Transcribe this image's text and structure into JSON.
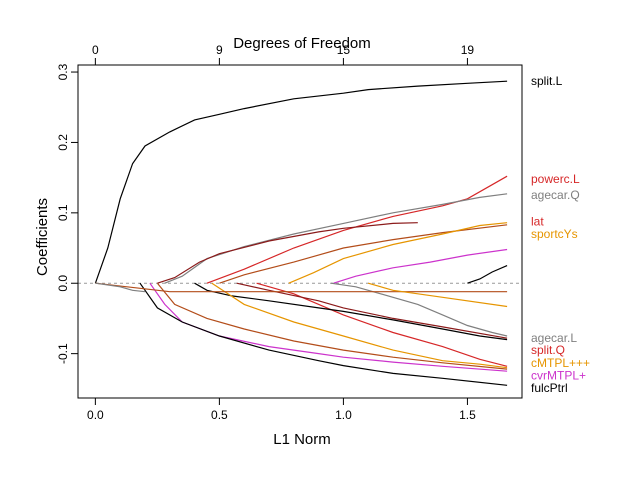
{
  "chart_data": {
    "type": "line",
    "title": "",
    "xlabel": "L1 Norm",
    "ylabel": "Coefficients",
    "top_axis_label": "Degrees of Freedom",
    "xlim": [
      -0.07,
      1.72
    ],
    "ylim": [
      -0.163,
      0.31
    ],
    "x_ticks": [
      0.0,
      0.5,
      1.0,
      1.5
    ],
    "x_tick_labels": [
      "0.0",
      "0.5",
      "1.0",
      "1.5"
    ],
    "y_ticks": [
      -0.1,
      0.0,
      0.1,
      0.2,
      0.3
    ],
    "y_tick_labels": [
      "-0.1",
      "0.0",
      "0.1",
      "0.2",
      "0.3"
    ],
    "top_ticks": [
      0.0,
      0.5,
      1.0,
      1.5
    ],
    "top_tick_labels": [
      "0",
      "9",
      "15",
      "19"
    ],
    "zero_line": true,
    "series": [
      {
        "name": "split.L",
        "color": "#000000",
        "points": [
          [
            0,
            0
          ],
          [
            0.05,
            0.05
          ],
          [
            0.1,
            0.12
          ],
          [
            0.15,
            0.17
          ],
          [
            0.2,
            0.195
          ],
          [
            0.3,
            0.215
          ],
          [
            0.4,
            0.232
          ],
          [
            0.5,
            0.24
          ],
          [
            0.6,
            0.248
          ],
          [
            0.8,
            0.262
          ],
          [
            1.0,
            0.27
          ],
          [
            1.1,
            0.275
          ],
          [
            1.3,
            0.28
          ],
          [
            1.5,
            0.284
          ],
          [
            1.66,
            0.287
          ]
        ]
      },
      {
        "name": "",
        "color": "#000000",
        "points": [
          [
            1.5,
            0.0
          ],
          [
            1.55,
            0.006
          ],
          [
            1.6,
            0.016
          ],
          [
            1.66,
            0.025
          ]
        ]
      },
      {
        "name": "powerc.L",
        "color": "#d62728",
        "points": [
          [
            0.45,
            0
          ],
          [
            0.6,
            0.02
          ],
          [
            0.8,
            0.05
          ],
          [
            1.0,
            0.075
          ],
          [
            1.2,
            0.095
          ],
          [
            1.4,
            0.11
          ],
          [
            1.5,
            0.12
          ],
          [
            1.6,
            0.14
          ],
          [
            1.66,
            0.152
          ]
        ]
      },
      {
        "name": "agecar.Q",
        "color": "#7f7f7f",
        "points": [
          [
            0.28,
            0
          ],
          [
            0.35,
            0.01
          ],
          [
            0.45,
            0.035
          ],
          [
            0.6,
            0.052
          ],
          [
            0.8,
            0.07
          ],
          [
            1.0,
            0.085
          ],
          [
            1.2,
            0.1
          ],
          [
            1.4,
            0.112
          ],
          [
            1.55,
            0.122
          ],
          [
            1.66,
            0.127
          ]
        ]
      },
      {
        "name": "",
        "color": "#8b1a1a",
        "points": [
          [
            0.25,
            0
          ],
          [
            0.32,
            0.008
          ],
          [
            0.42,
            0.03
          ],
          [
            0.5,
            0.042
          ],
          [
            0.7,
            0.06
          ],
          [
            0.9,
            0.073
          ],
          [
            1.0,
            0.078
          ],
          [
            1.2,
            0.085
          ],
          [
            1.3,
            0.086
          ]
        ]
      },
      {
        "name": "lat",
        "color": "#b34d1a",
        "points": [
          [
            0.5,
            0
          ],
          [
            0.6,
            0.012
          ],
          [
            0.8,
            0.03
          ],
          [
            1.0,
            0.05
          ],
          [
            1.2,
            0.062
          ],
          [
            1.4,
            0.072
          ],
          [
            1.66,
            0.083
          ]
        ]
      },
      {
        "name": "sportcYs",
        "color": "#e69500",
        "points": [
          [
            0.78,
            0
          ],
          [
            0.88,
            0.015
          ],
          [
            1.0,
            0.035
          ],
          [
            1.2,
            0.055
          ],
          [
            1.4,
            0.07
          ],
          [
            1.55,
            0.082
          ],
          [
            1.66,
            0.086
          ]
        ]
      },
      {
        "name": "",
        "color": "#cc33cc",
        "points": [
          [
            0.96,
            0
          ],
          [
            1.05,
            0.01
          ],
          [
            1.2,
            0.022
          ],
          [
            1.35,
            0.03
          ],
          [
            1.5,
            0.04
          ],
          [
            1.66,
            0.048
          ]
        ]
      },
      {
        "name": "agecar.L",
        "color": "#7f7f7f",
        "points": [
          [
            0.95,
            0
          ],
          [
            1.05,
            -0.005
          ],
          [
            1.15,
            -0.015
          ],
          [
            1.3,
            -0.03
          ],
          [
            1.4,
            -0.045
          ],
          [
            1.5,
            -0.06
          ],
          [
            1.6,
            -0.07
          ],
          [
            1.66,
            -0.075
          ]
        ]
      },
      {
        "name": "split.Q",
        "color": "#d62728",
        "points": [
          [
            0.65,
            0
          ],
          [
            0.8,
            -0.015
          ],
          [
            1.0,
            -0.045
          ],
          [
            1.2,
            -0.07
          ],
          [
            1.4,
            -0.09
          ],
          [
            1.55,
            -0.108
          ],
          [
            1.66,
            -0.118
          ]
        ]
      },
      {
        "name": "",
        "color": "#8b1a1a",
        "points": [
          [
            0.57,
            0
          ],
          [
            0.7,
            -0.01
          ],
          [
            0.9,
            -0.025
          ],
          [
            1.0,
            -0.035
          ],
          [
            1.2,
            -0.05
          ],
          [
            1.4,
            -0.062
          ],
          [
            1.66,
            -0.078
          ]
        ]
      },
      {
        "name": "",
        "color": "#000000",
        "points": [
          [
            0.4,
            0
          ],
          [
            0.45,
            -0.01
          ],
          [
            0.55,
            -0.018
          ],
          [
            0.7,
            -0.025
          ],
          [
            0.9,
            -0.035
          ],
          [
            1.0,
            -0.04
          ],
          [
            1.2,
            -0.052
          ],
          [
            1.4,
            -0.065
          ],
          [
            1.55,
            -0.075
          ],
          [
            1.66,
            -0.08
          ]
        ]
      },
      {
        "name": "cMTPL+++",
        "color": "#e69500",
        "points": [
          [
            0.47,
            0
          ],
          [
            0.6,
            -0.03
          ],
          [
            0.8,
            -0.055
          ],
          [
            1.0,
            -0.075
          ],
          [
            1.2,
            -0.095
          ],
          [
            1.4,
            -0.11
          ],
          [
            1.55,
            -0.115
          ],
          [
            1.66,
            -0.12
          ]
        ]
      },
      {
        "name": "",
        "color": "#b34d1a",
        "points": [
          [
            0.25,
            0
          ],
          [
            0.32,
            -0.03
          ],
          [
            0.45,
            -0.05
          ],
          [
            0.6,
            -0.065
          ],
          [
            0.8,
            -0.082
          ],
          [
            1.0,
            -0.095
          ],
          [
            1.2,
            -0.105
          ],
          [
            1.4,
            -0.113
          ],
          [
            1.66,
            -0.122
          ]
        ]
      },
      {
        "name": "cvrMTPL+",
        "color": "#cc33cc",
        "points": [
          [
            0.22,
            0
          ],
          [
            0.28,
            -0.03
          ],
          [
            0.35,
            -0.055
          ],
          [
            0.5,
            -0.075
          ],
          [
            0.7,
            -0.09
          ],
          [
            0.9,
            -0.1
          ],
          [
            1.0,
            -0.105
          ],
          [
            1.2,
            -0.112
          ],
          [
            1.4,
            -0.118
          ],
          [
            1.66,
            -0.125
          ]
        ]
      },
      {
        "name": "fulcPtrl",
        "color": "#000000",
        "points": [
          [
            0.18,
            0
          ],
          [
            0.25,
            -0.035
          ],
          [
            0.35,
            -0.055
          ],
          [
            0.5,
            -0.075
          ],
          [
            0.7,
            -0.095
          ],
          [
            0.9,
            -0.11
          ],
          [
            1.0,
            -0.117
          ],
          [
            1.2,
            -0.128
          ],
          [
            1.4,
            -0.135
          ],
          [
            1.66,
            -0.145
          ]
        ]
      },
      {
        "name": "",
        "color": "#b34d1a",
        "points": [
          [
            0,
            0
          ],
          [
            0.3,
            -0.012
          ],
          [
            0.6,
            -0.012
          ],
          [
            1.0,
            -0.012
          ],
          [
            1.66,
            -0.012
          ]
        ]
      },
      {
        "name": "",
        "color": "#e69500",
        "points": [
          [
            1.1,
            0
          ],
          [
            1.2,
            -0.01
          ],
          [
            1.4,
            -0.02
          ],
          [
            1.66,
            -0.033
          ]
        ]
      },
      {
        "name": "",
        "color": "#7f7f7f",
        "points": [
          [
            0,
            0
          ],
          [
            0.1,
            -0.005
          ],
          [
            0.15,
            -0.01
          ],
          [
            0.2,
            -0.012
          ]
        ]
      }
    ],
    "right_labels": [
      {
        "text": "split.L",
        "y": 0.287,
        "color": "#000000"
      },
      {
        "text": "powerc.L",
        "y": 0.148,
        "color": "#d62728"
      },
      {
        "text": "agecar.Q",
        "y": 0.125,
        "color": "#7f7f7f"
      },
      {
        "text": "lat",
        "y": 0.088,
        "color": "#d62728"
      },
      {
        "text": "sportcYs",
        "y": 0.07,
        "color": "#e69500"
      },
      {
        "text": "agecar.L",
        "y": -0.078,
        "color": "#7f7f7f"
      },
      {
        "text": "split.Q",
        "y": -0.095,
        "color": "#d62728"
      },
      {
        "text": "cMTPL+++",
        "y": -0.113,
        "color": "#e69500"
      },
      {
        "text": "cvrMTPL+",
        "y": -0.131,
        "color": "#cc33cc"
      },
      {
        "text": "fulcPtrl",
        "y": -0.149,
        "color": "#000000"
      }
    ]
  }
}
